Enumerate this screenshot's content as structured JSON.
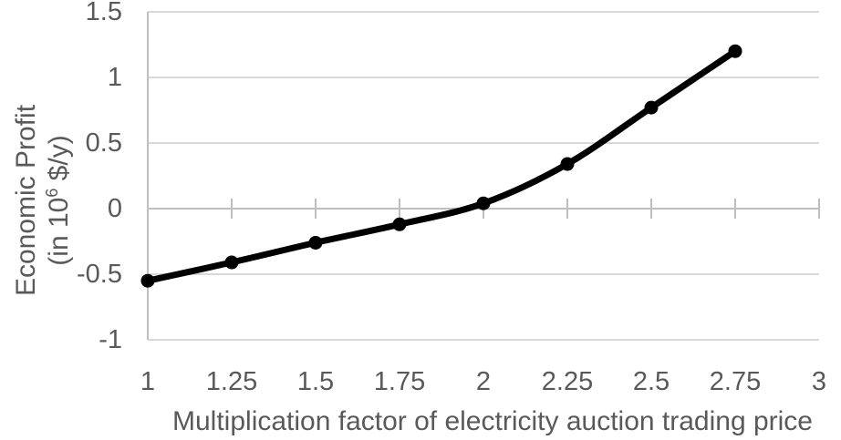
{
  "chart_data": {
    "type": "line",
    "series_style": "smooth line with circular markers",
    "x": [
      1,
      1.25,
      1.5,
      1.75,
      2,
      2.25,
      2.5,
      2.75
    ],
    "values": [
      -0.55,
      -0.41,
      -0.26,
      -0.12,
      0.04,
      0.34,
      0.77,
      1.2
    ],
    "xlabel": "Multiplication factor of electricity auction trading price",
    "ylabel": "Economic Profit (in 10⁶ $/y)",
    "ylabel_line1": "Economic Profit",
    "ylabel_line2_prefix": "(in 10",
    "ylabel_line2_sup": "6",
    "ylabel_line2_suffix": " $/y)",
    "xlim": [
      1,
      3
    ],
    "ylim": [
      -1,
      1.5
    ],
    "xticks": [
      1,
      1.25,
      1.5,
      1.75,
      2,
      2.25,
      2.5,
      2.75,
      3
    ],
    "yticks": [
      1.5,
      1,
      0.5,
      0,
      -0.5,
      -1
    ],
    "grid": "horizontal gridlines at each y tick, x axis line at y=0 with cross tick marks",
    "legend": "none",
    "title": "",
    "colors": {
      "series": "#000000",
      "gridline": "#d9d9d9",
      "axis": "#bfbfbf",
      "tick_label": "#595959",
      "axis_title": "#595959",
      "background": "#ffffff"
    }
  }
}
